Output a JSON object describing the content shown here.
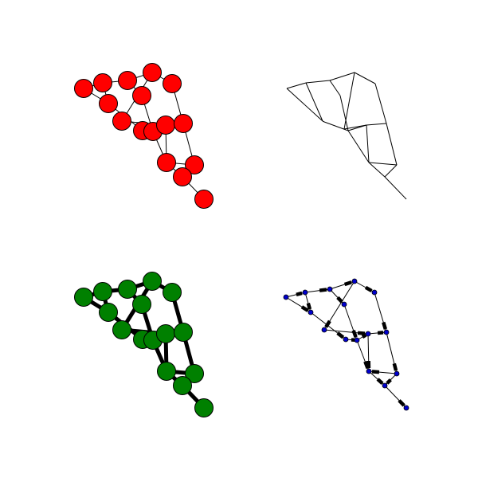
{
  "figure": {
    "background": "#ffffff",
    "panels": [
      {
        "id": "top-left",
        "edge_style": "thin",
        "node_style": "large",
        "node_color": "#ff0000",
        "edge_color": "#000000"
      },
      {
        "id": "top-right",
        "edge_style": "thin",
        "node_style": "none",
        "edge_color": "#000000"
      },
      {
        "id": "bottom-left",
        "edge_style": "thick",
        "node_style": "large",
        "node_color": "#008000",
        "edge_color": "#000000"
      },
      {
        "id": "bottom-right",
        "edge_style": "thin-with-arrowheads",
        "node_style": "small",
        "node_color": "#0000cc",
        "edge_color": "#000000"
      }
    ],
    "graph": {
      "node_count": 16,
      "edges": [
        [
          0,
          1
        ],
        [
          1,
          2
        ],
        [
          2,
          3
        ],
        [
          3,
          4
        ],
        [
          0,
          5
        ],
        [
          1,
          5
        ],
        [
          2,
          6
        ],
        [
          3,
          7
        ],
        [
          4,
          11
        ],
        [
          5,
          8
        ],
        [
          6,
          9
        ],
        [
          7,
          10
        ],
        [
          8,
          9
        ],
        [
          9,
          10
        ],
        [
          10,
          11
        ],
        [
          9,
          13
        ],
        [
          10,
          13
        ],
        [
          11,
          12
        ],
        [
          12,
          13
        ],
        [
          12,
          14
        ],
        [
          13,
          14
        ],
        [
          14,
          15
        ]
      ]
    }
  }
}
